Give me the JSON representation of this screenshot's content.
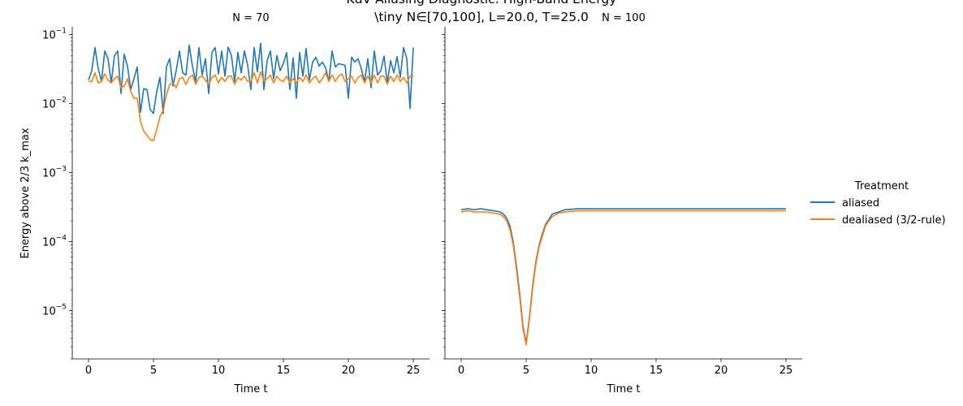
{
  "chart_data": {
    "type": "line",
    "title_line1": "KdV Aliasing Diagnostic: High-Band Energy",
    "title_line2": "\\tiny N∈[70,100], L=20.0, T=25.0",
    "ylabel": "Energy above 2/3 k_max",
    "xlabel": "Time t",
    "yscale": "log",
    "ylim": [
      2e-06,
      0.13
    ],
    "xlim": [
      -1.25,
      26.25
    ],
    "x_ticks": [
      0,
      5,
      10,
      15,
      20,
      25
    ],
    "y_ticks": [
      "10^-5",
      "10^-4",
      "10^-3",
      "10^-2",
      "10^-1"
    ],
    "legend": {
      "title": "Treatment",
      "placement": "right",
      "entries": [
        "aliased",
        "dealiased (3/2-rule)"
      ]
    },
    "colors": {
      "aliased": "#1f77b4",
      "dealiased (3/2-rule)": "#ff7f0e"
    },
    "panels": [
      {
        "title": "N = 70",
        "series": [
          {
            "name": "aliased",
            "x": [
              0.0,
              0.25,
              0.5,
              0.75,
              1.0,
              1.25,
              1.5,
              1.75,
              2.0,
              2.25,
              2.5,
              2.75,
              3.0,
              3.25,
              3.5,
              3.75,
              4.0,
              4.25,
              4.5,
              4.75,
              5.0,
              5.25,
              5.5,
              5.75,
              6.0,
              6.25,
              6.5,
              6.75,
              7.0,
              7.25,
              7.5,
              7.75,
              8.0,
              8.25,
              8.5,
              8.75,
              9.0,
              9.25,
              9.5,
              9.75,
              10.0,
              10.25,
              10.5,
              10.75,
              11.0,
              11.25,
              11.5,
              11.75,
              12.0,
              12.25,
              12.5,
              12.75,
              13.0,
              13.25,
              13.5,
              13.75,
              14.0,
              14.25,
              14.5,
              14.75,
              15.0,
              15.25,
              15.5,
              15.75,
              16.0,
              16.25,
              16.5,
              16.75,
              17.0,
              17.25,
              17.5,
              17.75,
              18.0,
              18.25,
              18.5,
              18.75,
              19.0,
              19.25,
              19.5,
              19.75,
              20.0,
              20.25,
              20.5,
              20.75,
              21.0,
              21.25,
              21.5,
              21.75,
              22.0,
              22.25,
              22.5,
              22.75,
              23.0,
              23.25,
              23.5,
              23.75,
              24.0,
              24.25,
              24.5,
              24.75,
              25.0
            ],
            "y": [
              0.022,
              0.03,
              0.065,
              0.032,
              0.021,
              0.058,
              0.045,
              0.02,
              0.05,
              0.058,
              0.014,
              0.052,
              0.035,
              0.016,
              0.023,
              0.034,
              0.0075,
              0.0165,
              0.016,
              0.0082,
              0.0072,
              0.015,
              0.024,
              0.0072,
              0.034,
              0.045,
              0.018,
              0.03,
              0.058,
              0.028,
              0.026,
              0.07,
              0.035,
              0.021,
              0.065,
              0.026,
              0.045,
              0.014,
              0.055,
              0.065,
              0.027,
              0.058,
              0.025,
              0.066,
              0.05,
              0.021,
              0.055,
              0.028,
              0.058,
              0.036,
              0.016,
              0.065,
              0.029,
              0.075,
              0.016,
              0.042,
              0.058,
              0.023,
              0.05,
              0.03,
              0.038,
              0.055,
              0.016,
              0.046,
              0.012,
              0.055,
              0.025,
              0.063,
              0.022,
              0.04,
              0.047,
              0.035,
              0.04,
              0.033,
              0.021,
              0.058,
              0.034,
              0.038,
              0.037,
              0.036,
              0.012,
              0.047,
              0.04,
              0.045,
              0.032,
              0.021,
              0.045,
              0.017,
              0.058,
              0.026,
              0.03,
              0.049,
              0.02,
              0.042,
              0.028,
              0.048,
              0.024,
              0.065,
              0.045,
              0.0085,
              0.065
            ]
          },
          {
            "name": "dealiased (3/2-rule)",
            "x": [
              0.0,
              0.25,
              0.5,
              0.75,
              1.0,
              1.25,
              1.5,
              1.75,
              2.0,
              2.25,
              2.5,
              2.75,
              3.0,
              3.25,
              3.5,
              3.75,
              4.0,
              4.25,
              4.5,
              4.75,
              5.0,
              5.25,
              5.5,
              5.75,
              6.0,
              6.25,
              6.5,
              6.75,
              7.0,
              7.25,
              7.5,
              7.75,
              8.0,
              8.25,
              8.5,
              8.75,
              9.0,
              9.25,
              9.5,
              9.75,
              10.0,
              10.25,
              10.5,
              10.75,
              11.0,
              11.25,
              11.5,
              11.75,
              12.0,
              12.25,
              12.5,
              12.75,
              13.0,
              13.25,
              13.5,
              13.75,
              14.0,
              14.25,
              14.5,
              14.75,
              15.0,
              15.25,
              15.5,
              15.75,
              16.0,
              16.25,
              16.5,
              16.75,
              17.0,
              17.25,
              17.5,
              17.75,
              18.0,
              18.25,
              18.5,
              18.75,
              19.0,
              19.25,
              19.5,
              19.75,
              20.0,
              20.25,
              20.5,
              20.75,
              21.0,
              21.25,
              21.5,
              21.75,
              22.0,
              22.25,
              22.5,
              22.75,
              23.0,
              23.25,
              23.5,
              23.75,
              24.0,
              24.25,
              24.5,
              24.75,
              25.0
            ],
            "y": [
              0.021,
              0.021,
              0.028,
              0.02,
              0.021,
              0.027,
              0.022,
              0.02,
              0.023,
              0.025,
              0.017,
              0.018,
              0.023,
              0.015,
              0.012,
              0.012,
              0.0055,
              0.004,
              0.0035,
              0.003,
              0.0029,
              0.0042,
              0.0065,
              0.008,
              0.0135,
              0.019,
              0.02,
              0.017,
              0.023,
              0.024,
              0.019,
              0.024,
              0.026,
              0.019,
              0.024,
              0.025,
              0.022,
              0.019,
              0.024,
              0.026,
              0.02,
              0.024,
              0.021,
              0.025,
              0.025,
              0.019,
              0.024,
              0.022,
              0.025,
              0.021,
              0.021,
              0.028,
              0.02,
              0.029,
              0.021,
              0.023,
              0.026,
              0.02,
              0.025,
              0.022,
              0.021,
              0.025,
              0.02,
              0.023,
              0.02,
              0.024,
              0.021,
              0.026,
              0.02,
              0.023,
              0.025,
              0.02,
              0.023,
              0.028,
              0.021,
              0.026,
              0.021,
              0.025,
              0.027,
              0.021,
              0.023,
              0.025,
              0.02,
              0.024,
              0.026,
              0.02,
              0.025,
              0.02,
              0.026,
              0.02,
              0.025,
              0.025,
              0.019,
              0.025,
              0.021,
              0.026,
              0.021,
              0.024,
              0.02,
              0.025,
              0.025
            ]
          }
        ]
      },
      {
        "title": "N = 100",
        "series": [
          {
            "name": "aliased",
            "x": [
              0.0,
              0.5,
              1.0,
              1.5,
              2.0,
              2.5,
              3.0,
              3.25,
              3.5,
              3.75,
              4.0,
              4.25,
              4.5,
              4.75,
              5.0,
              5.25,
              5.5,
              5.75,
              6.0,
              6.25,
              6.5,
              6.75,
              7.0,
              7.5,
              8.0,
              9.0,
              10.0,
              11.0,
              12.0,
              13.0,
              14.0,
              15.0,
              16.0,
              17.0,
              18.0,
              19.0,
              20.0,
              21.0,
              22.0,
              23.0,
              24.0,
              25.0
            ],
            "y": [
              0.00029,
              0.0003,
              0.00029,
              0.0003,
              0.00029,
              0.00028,
              0.00027,
              0.00025,
              0.00022,
              0.00017,
              0.0001,
              4.5e-05,
              1.8e-05,
              6e-06,
              3.4e-06,
              8e-06,
              2.3e-05,
              5.2e-05,
              9e-05,
              0.00013,
              0.00018,
              0.00021,
              0.00025,
              0.00027,
              0.00029,
              0.0003,
              0.0003,
              0.0003,
              0.0003,
              0.0003,
              0.0003,
              0.0003,
              0.0003,
              0.0003,
              0.0003,
              0.0003,
              0.0003,
              0.0003,
              0.0003,
              0.0003,
              0.0003,
              0.0003
            ]
          },
          {
            "name": "dealiased (3/2-rule)",
            "x": [
              0.0,
              0.5,
              1.0,
              1.5,
              2.0,
              2.5,
              3.0,
              3.25,
              3.5,
              3.75,
              4.0,
              4.25,
              4.5,
              4.75,
              5.0,
              5.25,
              5.5,
              5.75,
              6.0,
              6.25,
              6.5,
              6.75,
              7.0,
              7.5,
              8.0,
              9.0,
              10.0,
              11.0,
              12.0,
              13.0,
              14.0,
              15.0,
              16.0,
              17.0,
              18.0,
              19.0,
              20.0,
              21.0,
              22.0,
              23.0,
              24.0,
              25.0
            ],
            "y": [
              0.00027,
              0.00028,
              0.00027,
              0.00027,
              0.00027,
              0.00026,
              0.00025,
              0.00023,
              0.0002,
              0.00015,
              9e-05,
              4e-05,
              1.6e-05,
              5.5e-06,
              3.2e-06,
              7.5e-06,
              2.1e-05,
              4.8e-05,
              8.5e-05,
              0.00012,
              0.00017,
              0.0002,
              0.00023,
              0.00026,
              0.00027,
              0.00028,
              0.00028,
              0.00028,
              0.00028,
              0.00028,
              0.00028,
              0.00028,
              0.00028,
              0.00028,
              0.00028,
              0.00028,
              0.00028,
              0.00028,
              0.00028,
              0.00028,
              0.00028,
              0.00028
            ]
          }
        ]
      }
    ]
  }
}
